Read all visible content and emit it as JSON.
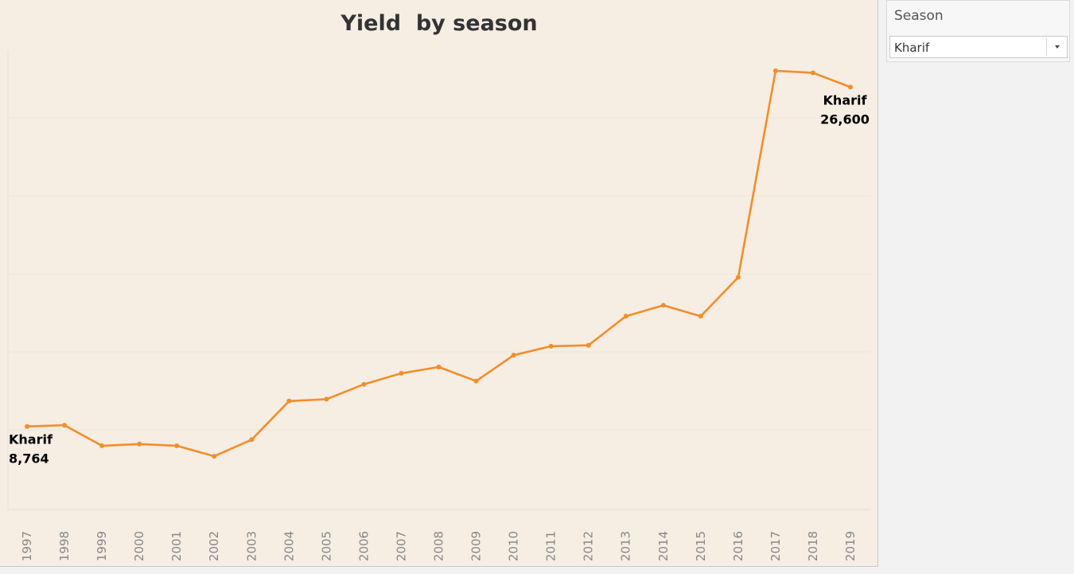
{
  "filter": {
    "title": "Season",
    "selected": "Kharif"
  },
  "chart_data": {
    "type": "line",
    "title": "Yield  by season",
    "xlabel": "",
    "ylabel": "",
    "x": [
      "1997",
      "1998",
      "1999",
      "2000",
      "2001",
      "2002",
      "2003",
      "2004",
      "2005",
      "2006",
      "2007",
      "2008",
      "2009",
      "2010",
      "2011",
      "2012",
      "2013",
      "2014",
      "2015",
      "2016",
      "2017",
      "2018",
      "2019"
    ],
    "series": [
      {
        "name": "Kharif",
        "values": [
          8764,
          8830,
          7750,
          7840,
          7750,
          7200,
          8070,
          10100,
          10200,
          10980,
          11560,
          11890,
          11150,
          12510,
          12980,
          13030,
          14560,
          15130,
          14560,
          16600,
          27460,
          27350,
          26600
        ]
      }
    ],
    "start_label": {
      "series": "Kharif",
      "value": "8,764"
    },
    "end_label": {
      "series": "Kharif",
      "value": "26,600"
    },
    "ylim": [
      4400,
      28500
    ],
    "grid": "horizontal",
    "line_color": "#f28e2b"
  }
}
